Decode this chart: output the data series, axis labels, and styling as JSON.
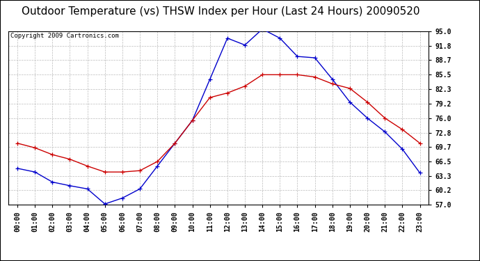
{
  "title": "Outdoor Temperature (vs) THSW Index per Hour (Last 24 Hours) 20090520",
  "copyright": "Copyright 2009 Cartronics.com",
  "hours": [
    0,
    1,
    2,
    3,
    4,
    5,
    6,
    7,
    8,
    9,
    10,
    11,
    12,
    13,
    14,
    15,
    16,
    17,
    18,
    19,
    20,
    21,
    22,
    23
  ],
  "thsw": [
    65.0,
    64.2,
    62.0,
    61.2,
    60.5,
    57.2,
    58.5,
    60.5,
    65.5,
    70.5,
    75.5,
    84.5,
    93.5,
    92.0,
    95.5,
    93.5,
    89.5,
    89.2,
    84.5,
    79.5,
    76.0,
    73.0,
    69.2,
    64.0
  ],
  "temp": [
    70.5,
    69.5,
    68.0,
    67.0,
    65.5,
    64.2,
    64.2,
    64.5,
    66.5,
    70.5,
    75.5,
    80.5,
    81.5,
    83.0,
    85.5,
    85.5,
    85.5,
    85.0,
    83.5,
    82.5,
    79.5,
    76.0,
    73.5,
    70.5
  ],
  "thsw_color": "#0000cc",
  "temp_color": "#cc0000",
  "ylim_min": 57.0,
  "ylim_max": 95.0,
  "yticks": [
    57.0,
    60.2,
    63.3,
    66.5,
    69.7,
    72.8,
    76.0,
    79.2,
    82.3,
    85.5,
    88.7,
    91.8,
    95.0
  ],
  "background_color": "#ffffff",
  "plot_bg_color": "#ffffff",
  "grid_color": "#bbbbbb",
  "title_fontsize": 11,
  "tick_fontsize": 7,
  "copyright_fontsize": 6.5,
  "outer_border_color": "#000000"
}
